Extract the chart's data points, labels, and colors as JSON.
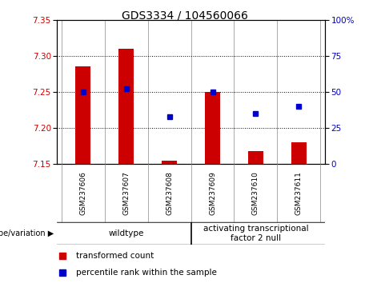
{
  "title": "GDS3334 / 104560066",
  "categories": [
    "GSM237606",
    "GSM237607",
    "GSM237608",
    "GSM237609",
    "GSM237610",
    "GSM237611"
  ],
  "bar_values": [
    7.285,
    7.31,
    7.155,
    7.25,
    7.168,
    7.18
  ],
  "percentile_values": [
    50,
    52,
    33,
    50,
    35,
    40
  ],
  "bar_baseline": 7.15,
  "ylim_left": [
    7.15,
    7.35
  ],
  "ylim_right": [
    0,
    100
  ],
  "yticks_left": [
    7.15,
    7.2,
    7.25,
    7.3,
    7.35
  ],
  "yticks_right": [
    0,
    25,
    50,
    75,
    100
  ],
  "bar_color": "#cc0000",
  "point_color": "#0000cc",
  "bar_width": 0.35,
  "genotype_labels": [
    "wildtype",
    "activating transcriptional\nfactor 2 null"
  ],
  "wildtype_count": 3,
  "title_fontsize": 10,
  "tick_fontsize": 7.5,
  "cat_fontsize": 6.5,
  "geno_fontsize": 7.5,
  "legend_fontsize": 7.5,
  "background_plot": "#ffffff",
  "background_label": "#c8c8c8",
  "green_bg": "#90EE90"
}
